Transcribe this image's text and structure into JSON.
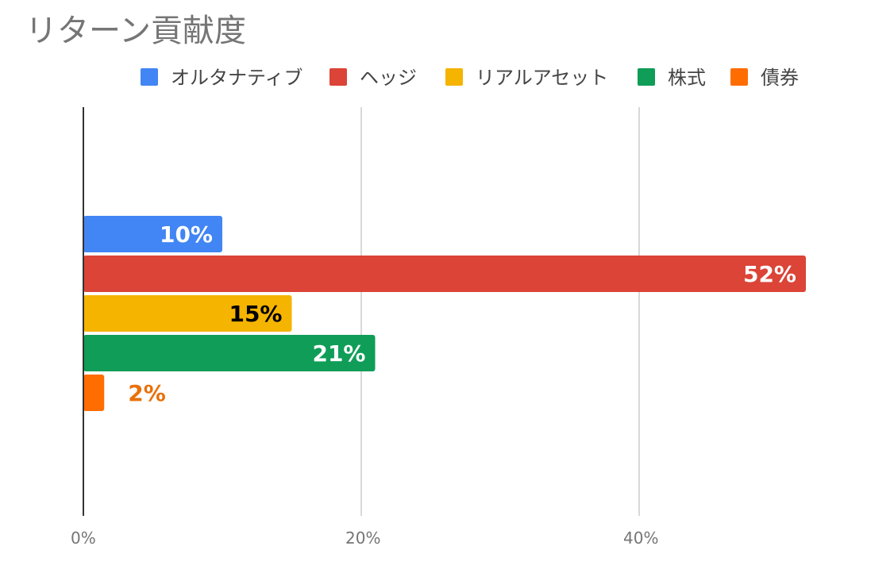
{
  "chart_data": {
    "type": "bar",
    "orientation": "horizontal",
    "title": "リターン貢献度",
    "categories": [
      ""
    ],
    "series": [
      {
        "name": "オルタナティブ",
        "values": [
          10
        ],
        "color": "#4285F4",
        "label": "10%",
        "label_color": "#ffffff",
        "label_position": "inside"
      },
      {
        "name": "ヘッジ",
        "values": [
          52
        ],
        "color": "#DB4437",
        "label": "52%",
        "label_color": "#ffffff",
        "label_position": "inside"
      },
      {
        "name": "リアルアセット",
        "values": [
          15
        ],
        "color": "#F4B400",
        "label": "15%",
        "label_color": "#000000",
        "label_position": "inside"
      },
      {
        "name": "株式",
        "values": [
          21
        ],
        "color": "#0F9D58",
        "label": "21%",
        "label_color": "#ffffff",
        "label_position": "inside"
      },
      {
        "name": "債券",
        "values": [
          1.5
        ],
        "color": "#FF6D01",
        "label": "2%",
        "label_color": "#E8710A",
        "label_position": "outside"
      }
    ],
    "x_ticks": [
      {
        "value": 0,
        "label": "0%"
      },
      {
        "value": 20,
        "label": "20%"
      },
      {
        "value": 40,
        "label": "40%"
      }
    ],
    "xlim": [
      0,
      58
    ],
    "grid": true,
    "legend_position": "top"
  }
}
